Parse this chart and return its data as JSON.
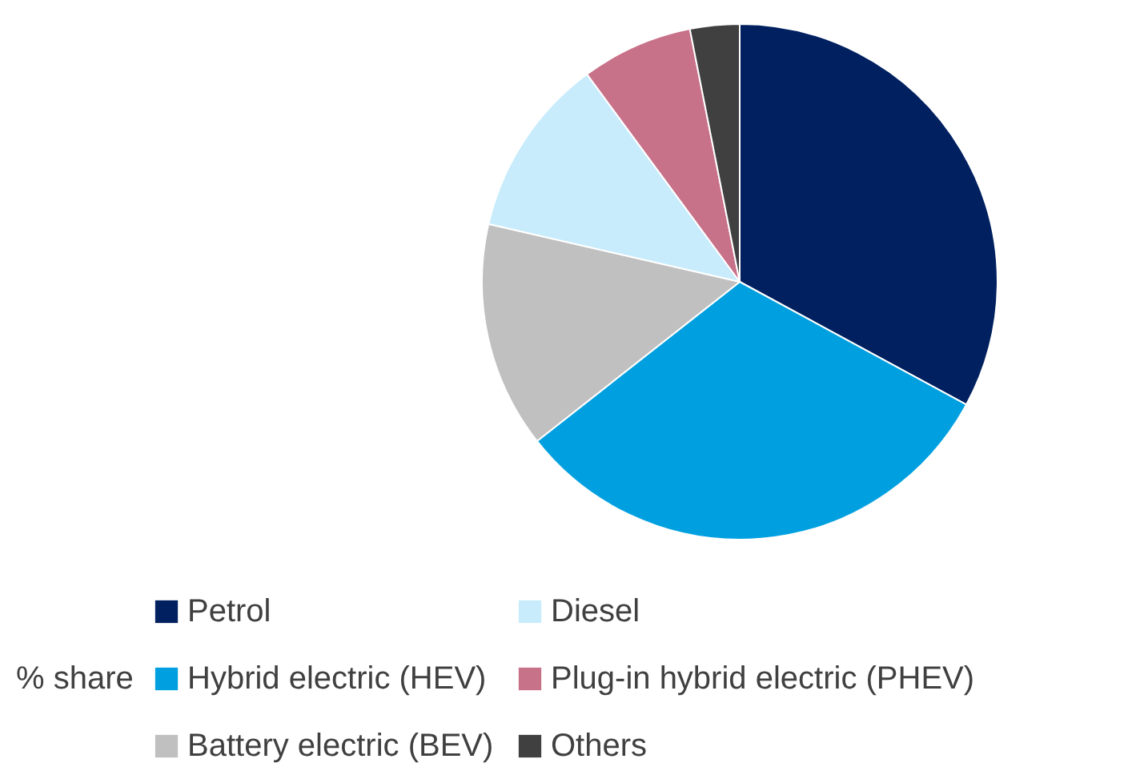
{
  "chart_data": {
    "type": "pie",
    "categories": [
      "Petrol",
      "Hybrid electric (HEV)",
      "Battery electric (BEV)",
      "Diesel",
      "Plug-in hybrid electric (PHEV)",
      "Others"
    ],
    "values": [
      32.9,
      31.5,
      14.2,
      11.3,
      7.0,
      3.1
    ],
    "colors": [
      "#002060",
      "#00a0e0",
      "#c0c0c0",
      "#c8ecfc",
      "#c8728a",
      "#404040"
    ],
    "legend_title": "% share",
    "legend": "bottom"
  }
}
